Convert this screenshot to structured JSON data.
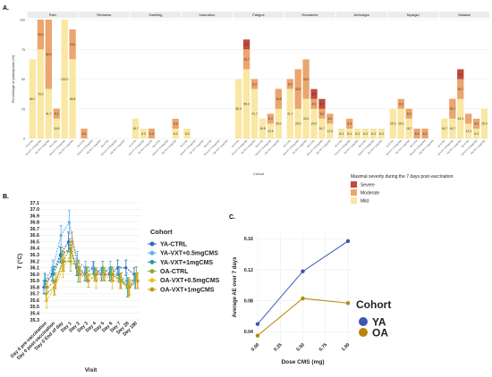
{
  "panel_labels": {
    "a": "A.",
    "b": "B.",
    "c": "C."
  },
  "colors": {
    "mild": "#f9e7a2",
    "moderate": "#eba56d",
    "severe": "#c44b3c",
    "ya": "#3d56b3",
    "oa": "#b8860b",
    "strip": "#ececec",
    "grid": "#e8e8e8"
  },
  "chart_data": [
    {
      "type": "bar",
      "stacked": true,
      "ylabel": "Percentage of participants (%)",
      "xlabel": "Cohort",
      "ylim": [
        0,
        100
      ],
      "yticks": [
        0,
        25,
        50,
        75,
        100
      ],
      "groups": [
        "YA-CTRL",
        "YA-VXT+0.5mgCMS",
        "YA-VXT+1mgCMS",
        "OA-CTRL",
        "OA-VXT+0.5mgCMS",
        "OA-VXT+1mgCMS"
      ],
      "legend": {
        "title": "Maximal severity during the 7 days post-vaccination",
        "items": [
          "Severe",
          "Moderate",
          "Mild"
        ]
      },
      "facets": [
        {
          "name": "Pain",
          "mild": [
            66.7,
            75.0,
            41.7,
            16.8,
            100.0,
            66.8
          ],
          "moderate": [
            0,
            25.0,
            58.3,
            8.3,
            0,
            25.0
          ],
          "severe": [
            0,
            0,
            0,
            0,
            0,
            0
          ],
          "labels": {
            "mild": [
              "66.7",
              "75.0",
              "41.7",
              "16.8",
              "100.0",
              "66.8"
            ],
            "moderate": [
              "",
              "25.0",
              "58.3",
              "8.3",
              "",
              "25.0"
            ],
            "severe": [
              "",
              "",
              "",
              "",
              "",
              ""
            ]
          }
        },
        {
          "name": "Redness",
          "mild": [
            0,
            0,
            0,
            0,
            0,
            0
          ],
          "moderate": [
            8.3,
            0,
            0,
            0,
            0,
            0
          ],
          "severe": [
            0,
            0,
            0,
            0,
            0,
            0
          ],
          "labels": {
            "mild": [
              "",
              "",
              "",
              "",
              "",
              ""
            ],
            "moderate": [
              "8.3",
              "",
              "",
              "",
              "",
              ""
            ],
            "severe": [
              "",
              "",
              "",
              "",
              "",
              ""
            ]
          }
        },
        {
          "name": "Swelling",
          "mild": [
            16.7,
            8.3,
            0,
            0,
            0,
            8.3
          ],
          "moderate": [
            0,
            0,
            8.3,
            0,
            0,
            8.3
          ],
          "severe": [
            0,
            0,
            0,
            0,
            0,
            0
          ],
          "labels": {
            "mild": [
              "16.7",
              "8.3",
              "",
              "",
              "",
              "8.3"
            ],
            "moderate": [
              "",
              "",
              "8.3",
              "",
              "",
              "8.3"
            ],
            "severe": [
              "",
              "",
              "",
              "",
              "",
              ""
            ]
          }
        },
        {
          "name": "Induration",
          "mild": [
            8.3,
            0,
            0,
            0,
            0,
            0
          ],
          "moderate": [
            0,
            0,
            0,
            0,
            0,
            0
          ],
          "severe": [
            0,
            0,
            0,
            0,
            0,
            0
          ],
          "labels": {
            "mild": [
              "8.3",
              "",
              "",
              "",
              "",
              ""
            ],
            "moderate": [
              "",
              "",
              "",
              "",
              "",
              ""
            ],
            "severe": [
              "",
              "",
              "",
              "",
              "",
              ""
            ]
          }
        },
        {
          "name": "Fatigue",
          "mild": [
            50.0,
            58.3,
            41.7,
            16.8,
            12.5,
            25.0
          ],
          "moderate": [
            0,
            16.7,
            8.3,
            0,
            8.3,
            16.8
          ],
          "severe": [
            0,
            8.3,
            0,
            0,
            0,
            0
          ],
          "labels": {
            "mild": [
              "50.0",
              "58.3",
              "41.7",
              "16.8",
              "12.5",
              "25.0"
            ],
            "moderate": [
              "",
              "16.7",
              "8.3",
              "",
              "8.3",
              "16.8"
            ],
            "severe": [
              "",
              "8.3",
              "",
              "",
              "",
              ""
            ]
          }
        },
        {
          "name": "Headache",
          "mild": [
            41.7,
            25.0,
            33.3,
            25.0,
            16.7,
            12.5
          ],
          "moderate": [
            8.3,
            33.3,
            33.3,
            8.3,
            8.3,
            8.3
          ],
          "severe": [
            0,
            0,
            0,
            8.3,
            8.3,
            0
          ],
          "labels": {
            "mild": [
              "41.7",
              "25.0",
              "33.3",
              "25.0",
              "16.7",
              "12.5"
            ],
            "moderate": [
              "8.3",
              "33.3",
              "33.3",
              "8.3",
              "8.3",
              "8.3"
            ],
            "severe": [
              "",
              "",
              "",
              "8.3",
              "8.3",
              ""
            ]
          }
        },
        {
          "name": "Arthralgia",
          "mild": [
            8.3,
            8.3,
            8.3,
            8.3,
            8.3,
            8.3
          ],
          "moderate": [
            0,
            8.3,
            0,
            0,
            0,
            0
          ],
          "severe": [
            0,
            0,
            0,
            0,
            0,
            0
          ],
          "labels": {
            "mild": [
              "8.3",
              "8.3",
              "8.3",
              "8.3",
              "8.3",
              "8.3"
            ],
            "moderate": [
              "",
              "8.3",
              "",
              "",
              "",
              ""
            ],
            "severe": [
              "",
              "",
              "",
              "",
              "",
              ""
            ]
          }
        },
        {
          "name": "Myalgia",
          "mild": [
            25.0,
            25.0,
            16.7,
            0,
            0,
            0
          ],
          "moderate": [
            0,
            8.3,
            8.3,
            8.3,
            8.3,
            0
          ],
          "severe": [
            0,
            0,
            0,
            0,
            0,
            0
          ],
          "labels": {
            "mild": [
              "25.0",
              "25.0",
              "16.7",
              "",
              "",
              ""
            ],
            "moderate": [
              "",
              "8.3",
              "8.3",
              "8.3",
              "8.3",
              ""
            ],
            "severe": [
              "",
              "",
              "",
              "",
              "",
              ""
            ]
          }
        },
        {
          "name": "Malaise",
          "mild": [
            16.7,
            16.7,
            33.3,
            12.5,
            8.3,
            25.0
          ],
          "moderate": [
            0,
            16.7,
            16.7,
            8.3,
            8.3,
            0
          ],
          "severe": [
            0,
            0,
            8.3,
            0,
            0,
            0
          ],
          "labels": {
            "mild": [
              "16.7",
              "16.7",
              "33.3",
              "12.5",
              "8.3",
              "25.0"
            ],
            "moderate": [
              "",
              "16.7",
              "16.7",
              "",
              "8.3",
              ""
            ],
            "severe": [
              "",
              "",
              "8.3",
              "",
              "",
              ""
            ]
          }
        }
      ]
    },
    {
      "type": "line",
      "ylabel": "T (°C)",
      "xlabel": "Visit",
      "ylim": [
        35.3,
        37.1
      ],
      "yticks": [
        35.3,
        35.4,
        35.5,
        35.6,
        35.7,
        35.8,
        35.9,
        36.0,
        36.1,
        36.2,
        36.3,
        36.4,
        36.5,
        36.6,
        36.7,
        36.8,
        36.9,
        37.0,
        37.1
      ],
      "categories": [
        "Day 0 pre-vaccination",
        "Day 0 post-vaccination",
        "Day 0 End of day",
        "Day 1",
        "Day 2",
        "Day 3",
        "Day 4",
        "Day 5",
        "Day 6",
        "Day 7",
        "Day 28",
        "Day 180"
      ],
      "legend_title": "Cohort",
      "series": [
        {
          "name": "YA-CTRL",
          "color": "#2d66c8",
          "values": [
            35.8,
            36.0,
            36.3,
            36.5,
            36.1,
            36.0,
            36.1,
            36.0,
            36.0,
            36.1,
            36.1,
            36.0
          ],
          "errors": [
            0.1,
            0.1,
            0.12,
            0.15,
            0.12,
            0.1,
            0.1,
            0.1,
            0.1,
            0.12,
            0.12,
            0.1
          ]
        },
        {
          "name": "YA-VXT+0.5mgCMS",
          "color": "#5fb0e8",
          "values": [
            35.9,
            36.1,
            36.6,
            36.8,
            36.2,
            36.1,
            36.1,
            36.0,
            36.1,
            36.0,
            35.9,
            35.9
          ],
          "errors": [
            0.12,
            0.12,
            0.15,
            0.18,
            0.15,
            0.1,
            0.1,
            0.1,
            0.1,
            0.12,
            0.12,
            0.12
          ]
        },
        {
          "name": "YA-VXT+1mgCMS",
          "color": "#2f9c8f",
          "values": [
            35.9,
            36.0,
            36.3,
            36.4,
            36.0,
            36.0,
            36.0,
            36.1,
            36.0,
            36.0,
            35.8,
            35.9
          ],
          "errors": [
            0.1,
            0.12,
            0.12,
            0.15,
            0.12,
            0.1,
            0.1,
            0.1,
            0.1,
            0.12,
            0.15,
            0.12
          ]
        },
        {
          "name": "OA-CTRL",
          "color": "#8aa835",
          "values": [
            35.7,
            35.8,
            36.2,
            36.2,
            36.1,
            36.0,
            36.0,
            36.0,
            36.0,
            35.9,
            35.8,
            36.0
          ],
          "errors": [
            0.12,
            0.12,
            0.15,
            0.15,
            0.12,
            0.12,
            0.1,
            0.1,
            0.12,
            0.12,
            0.15,
            0.12
          ]
        },
        {
          "name": "OA-VXT+0.5mgCMS",
          "color": "#e8c020",
          "values": [
            35.6,
            35.8,
            36.1,
            36.3,
            36.0,
            36.0,
            35.9,
            36.0,
            35.9,
            35.9,
            35.8,
            35.9
          ],
          "errors": [
            0.12,
            0.12,
            0.15,
            0.15,
            0.12,
            0.12,
            0.12,
            0.1,
            0.12,
            0.12,
            0.15,
            0.12
          ]
        },
        {
          "name": "OA-VXT+1mgCMS",
          "color": "#c8961a",
          "values": [
            35.8,
            35.9,
            36.2,
            36.5,
            36.0,
            35.9,
            36.0,
            36.0,
            36.0,
            35.9,
            35.8,
            35.9
          ],
          "errors": [
            0.1,
            0.12,
            0.15,
            0.15,
            0.12,
            0.1,
            0.1,
            0.1,
            0.1,
            0.12,
            0.12,
            0.12
          ]
        }
      ]
    },
    {
      "type": "line",
      "ylabel": "Average AE over 7 days",
      "xlabel": "Dose CMS (mg)",
      "xlim": [
        0,
        1
      ],
      "ylim": [
        0.03,
        0.165
      ],
      "xticks": [
        "0.00",
        "0.25",
        "0.50",
        "0.75",
        "1.00"
      ],
      "yticks": [
        "0.04",
        "0.08",
        "0.12",
        "0.16"
      ],
      "legend_title": "Cohort",
      "series": [
        {
          "name": "YA",
          "color": "#3d56b3",
          "x": [
            0,
            0.5,
            1.0
          ],
          "y": [
            0.05,
            0.118,
            0.157
          ]
        },
        {
          "name": "OA",
          "color": "#b8860b",
          "x": [
            0,
            0.5,
            1.0
          ],
          "y": [
            0.035,
            0.083,
            0.077
          ]
        }
      ]
    }
  ]
}
